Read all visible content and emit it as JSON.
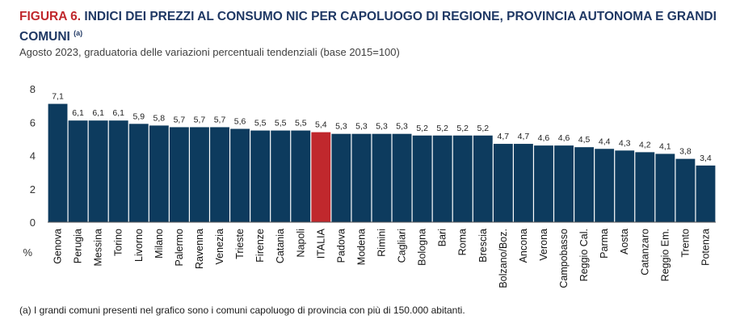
{
  "header": {
    "figure_label": "FIGURA 6.",
    "title": "INDICI DEI PREZZI AL CONSUMO NIC PER CAPOLUOGO DI REGIONE, PROVINCIA AUTONOMA E GRANDI COMUNI",
    "note_marker": "(a)",
    "subtitle": "Agosto 2023, graduatoria delle variazioni percentuali tendenziali (base 2015=100)"
  },
  "footnote": "(a)  I grandi comuni presenti nel grafico sono i comuni capoluogo di provincia con più di 150.000 abitanti.",
  "colors": {
    "bar": "#0d3b5e",
    "highlight": "#c0282d",
    "accent": "#4a7fbf",
    "title": "#1f3864",
    "figure": "#c0282d"
  },
  "chart_data": {
    "type": "bar",
    "title": "INDICI DEI PREZZI AL CONSUMO NIC PER CAPOLUOGO DI REGIONE, PROVINCIA AUTONOMA E GRANDI COMUNI",
    "subtitle": "Agosto 2023, graduatoria delle variazioni percentuali tendenziali (base 2015=100)",
    "ylabel": "%",
    "xlabel": "",
    "ylim": [
      0,
      8
    ],
    "yticks": [
      "0",
      "2",
      "4",
      "6",
      "8"
    ],
    "grid": false,
    "highlight_category": "ITALIA",
    "categories": [
      "Genova",
      "Perugia",
      "Messina",
      "Torino",
      "Livorno",
      "Milano",
      "Palermo",
      "Ravenna",
      "Venezia",
      "Trieste",
      "Firenze",
      "Catania",
      "Napoli",
      "ITALIA",
      "Padova",
      "Modena",
      "Rimini",
      "Cagliari",
      "Bologna",
      "Bari",
      "Roma",
      "Brescia",
      "Bolzano/Boz.",
      "Ancona",
      "Verona",
      "Campobasso",
      "Reggio Cal.",
      "Parma",
      "Aosta",
      "Catanzaro",
      "Reggio Em.",
      "Trento",
      "Potenza"
    ],
    "values": [
      7.1,
      6.1,
      6.1,
      6.1,
      5.9,
      5.8,
      5.7,
      5.7,
      5.7,
      5.6,
      5.5,
      5.5,
      5.5,
      5.4,
      5.3,
      5.3,
      5.3,
      5.3,
      5.2,
      5.2,
      5.2,
      5.2,
      4.7,
      4.7,
      4.6,
      4.6,
      4.5,
      4.4,
      4.3,
      4.2,
      4.1,
      3.8,
      3.4
    ],
    "value_labels": [
      "7,1",
      "6,1",
      "6,1",
      "6,1",
      "5,9",
      "5,8",
      "5,7",
      "5,7",
      "5,7",
      "5,6",
      "5,5",
      "5,5",
      "5,5",
      "5,4",
      "5,3",
      "5,3",
      "5,3",
      "5,3",
      "5,2",
      "5,2",
      "5,2",
      "5,2",
      "4,7",
      "4,7",
      "4,6",
      "4,6",
      "4,5",
      "4,4",
      "4,3",
      "4,2",
      "4,1",
      "3,8",
      "3,4"
    ]
  }
}
